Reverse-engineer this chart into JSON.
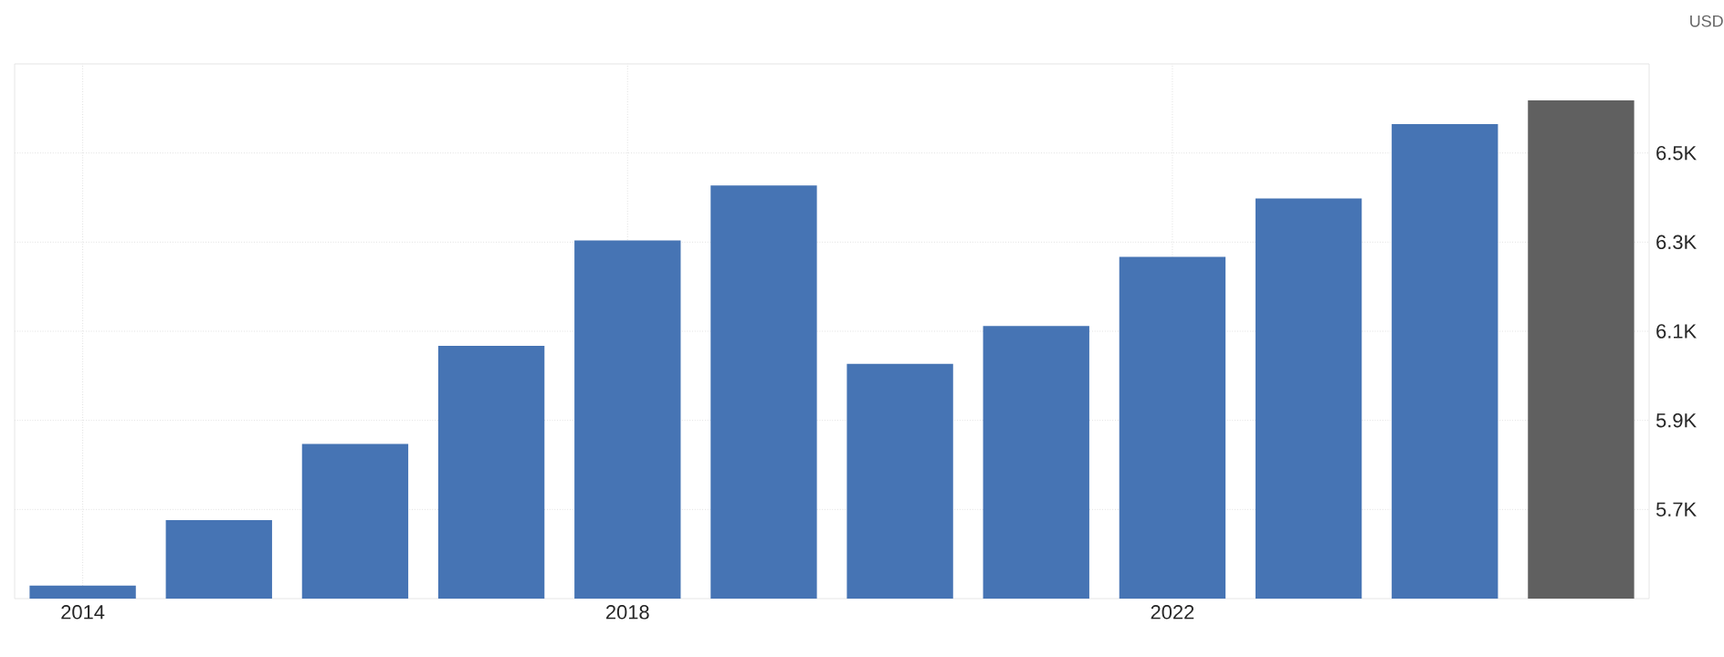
{
  "chart_data": {
    "type": "bar",
    "ylabel": "USD",
    "categories": [
      "2014",
      null,
      null,
      null,
      "2018",
      null,
      null,
      null,
      "2022",
      null,
      null,
      null
    ],
    "values": [
      5529,
      5676,
      5847,
      6067,
      6304,
      6427,
      6027,
      6112,
      6267,
      6398,
      6565,
      6618
    ],
    "colors": [
      "#4674b4",
      "#4674b4",
      "#4674b4",
      "#4674b4",
      "#4674b4",
      "#4674b4",
      "#4674b4",
      "#4674b4",
      "#4674b4",
      "#4674b4",
      "#4674b4",
      "#606060"
    ],
    "ylim": [
      5500,
      6700
    ],
    "yticks": [
      {
        "value": 5700,
        "label": "5.7K"
      },
      {
        "value": 5900,
        "label": "5.9K"
      },
      {
        "value": 6100,
        "label": "6.1K"
      },
      {
        "value": 6300,
        "label": "6.3K"
      },
      {
        "value": 6500,
        "label": "6.5K"
      }
    ],
    "grid": true
  }
}
